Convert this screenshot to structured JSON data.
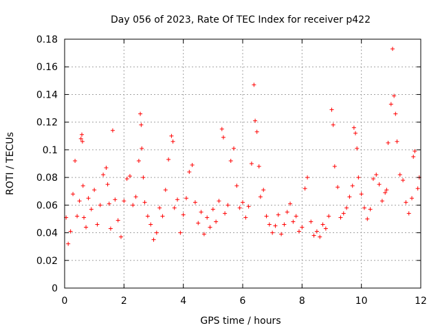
{
  "chart_data": {
    "type": "scatter",
    "title": "Day 056 of 2023, Rate Of TEC Index for receiver p422",
    "xlabel": "GPS time / hours",
    "ylabel": "ROTI / TECUs",
    "xlim": [
      0,
      12
    ],
    "ylim": [
      0,
      0.18
    ],
    "x_ticks": [
      0,
      2,
      4,
      6,
      8,
      10,
      12
    ],
    "x_tick_labels": [
      "0",
      "2",
      "4",
      "6",
      "8",
      "10",
      "12"
    ],
    "y_ticks": [
      0,
      0.02,
      0.04,
      0.06,
      0.08,
      0.1,
      0.12,
      0.14,
      0.16,
      0.18
    ],
    "y_tick_labels": [
      "0",
      "0.02",
      "0.04",
      "0.06",
      "0.08",
      "0.1",
      "0.12",
      "0.14",
      "0.16",
      "0.18"
    ],
    "grid": true,
    "marker": "plus",
    "color": "#ff0000",
    "series": [
      {
        "name": "ROTI",
        "x": [
          0.05,
          0.12,
          0.2,
          0.28,
          0.35,
          0.42,
          0.5,
          0.55,
          0.58,
          0.6,
          0.62,
          0.65,
          0.72,
          0.8,
          0.9,
          1.0,
          1.1,
          1.2,
          1.3,
          1.4,
          1.45,
          1.5,
          1.55,
          1.62,
          1.7,
          1.8,
          1.9,
          2.0,
          2.1,
          2.2,
          2.3,
          2.4,
          2.5,
          2.55,
          2.58,
          2.6,
          2.65,
          2.7,
          2.8,
          2.9,
          3.0,
          3.1,
          3.2,
          3.3,
          3.4,
          3.5,
          3.6,
          3.65,
          3.7,
          3.8,
          3.9,
          4.0,
          4.1,
          4.2,
          4.3,
          4.4,
          4.5,
          4.6,
          4.7,
          4.8,
          4.9,
          5.0,
          5.1,
          5.2,
          5.3,
          5.35,
          5.4,
          5.5,
          5.6,
          5.7,
          5.8,
          5.9,
          6.0,
          6.1,
          6.2,
          6.3,
          6.38,
          6.42,
          6.48,
          6.55,
          6.6,
          6.7,
          6.8,
          6.9,
          7.0,
          7.1,
          7.2,
          7.3,
          7.4,
          7.5,
          7.6,
          7.7,
          7.8,
          7.9,
          8.0,
          8.1,
          8.18,
          8.3,
          8.4,
          8.5,
          8.6,
          8.7,
          8.8,
          8.9,
          9.0,
          9.05,
          9.1,
          9.2,
          9.3,
          9.4,
          9.5,
          9.6,
          9.7,
          9.75,
          9.8,
          9.85,
          9.9,
          10.0,
          10.1,
          10.2,
          10.3,
          10.4,
          10.5,
          10.6,
          10.7,
          10.8,
          10.85,
          10.9,
          11.0,
          11.05,
          11.1,
          11.15,
          11.2,
          11.3,
          11.4,
          11.5,
          11.6,
          11.7,
          11.75,
          11.8,
          11.9,
          11.95
        ],
        "y": [
          0.051,
          0.032,
          0.041,
          0.068,
          0.092,
          0.052,
          0.063,
          0.108,
          0.111,
          0.106,
          0.074,
          0.051,
          0.044,
          0.065,
          0.057,
          0.071,
          0.046,
          0.06,
          0.082,
          0.087,
          0.075,
          0.061,
          0.043,
          0.114,
          0.064,
          0.049,
          0.037,
          0.063,
          0.079,
          0.081,
          0.06,
          0.066,
          0.092,
          0.126,
          0.118,
          0.101,
          0.08,
          0.062,
          0.052,
          0.046,
          0.035,
          0.04,
          0.058,
          0.052,
          0.071,
          0.093,
          0.11,
          0.106,
          0.058,
          0.064,
          0.04,
          0.053,
          0.065,
          0.084,
          0.089,
          0.062,
          0.047,
          0.055,
          0.039,
          0.051,
          0.044,
          0.057,
          0.048,
          0.063,
          0.115,
          0.109,
          0.054,
          0.06,
          0.092,
          0.101,
          0.074,
          0.058,
          0.062,
          0.051,
          0.059,
          0.09,
          0.147,
          0.121,
          0.113,
          0.088,
          0.066,
          0.071,
          0.052,
          0.046,
          0.04,
          0.045,
          0.053,
          0.039,
          0.046,
          0.055,
          0.061,
          0.048,
          0.052,
          0.041,
          0.044,
          0.072,
          0.08,
          0.048,
          0.038,
          0.041,
          0.037,
          0.046,
          0.043,
          0.052,
          0.129,
          0.118,
          0.088,
          0.073,
          0.051,
          0.054,
          0.058,
          0.066,
          0.074,
          0.116,
          0.112,
          0.101,
          0.08,
          0.068,
          0.058,
          0.05,
          0.057,
          0.079,
          0.082,
          0.075,
          0.063,
          0.069,
          0.071,
          0.105,
          0.133,
          0.173,
          0.139,
          0.126,
          0.106,
          0.082,
          0.078,
          0.062,
          0.054,
          0.065,
          0.095,
          0.099,
          0.072,
          0.08
        ]
      }
    ]
  }
}
